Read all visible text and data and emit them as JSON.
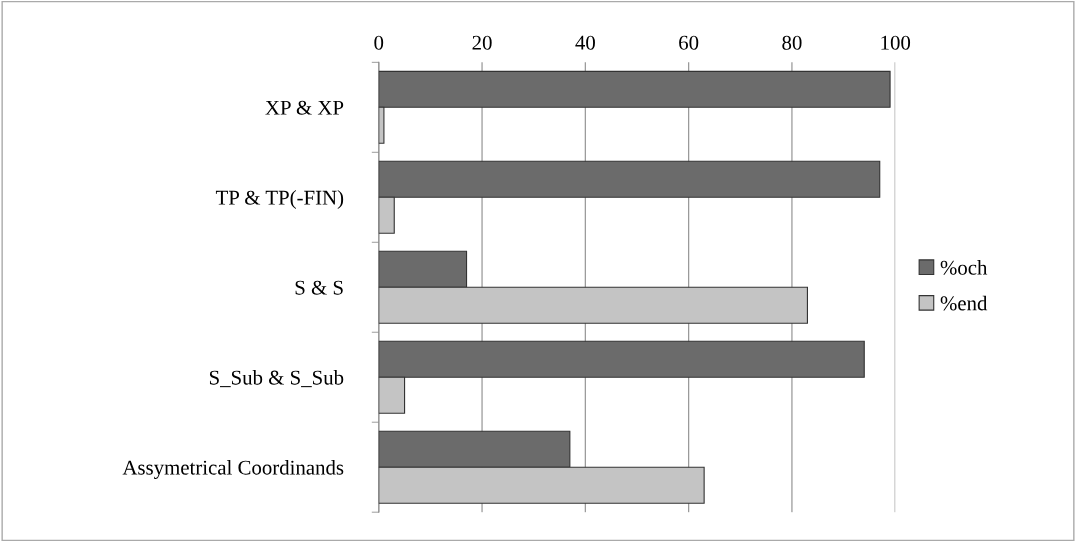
{
  "chart_data": {
    "type": "bar",
    "orientation": "horizontal",
    "categories": [
      "XP & XP",
      "TP & TP(-FIN)",
      "S & S",
      "S_Sub & S_Sub",
      "Assymetrical Coordinands"
    ],
    "series": [
      {
        "name": "%och",
        "color": "#6b6b6b",
        "values": [
          99,
          97,
          17,
          94,
          37
        ]
      },
      {
        "name": "%end",
        "color": "#c4c4c4",
        "values": [
          1,
          3,
          83,
          5,
          63
        ]
      }
    ],
    "xlim": [
      0,
      100
    ],
    "xticks": [
      0,
      20,
      40,
      60,
      80,
      100
    ],
    "grid": "x",
    "legend": "right"
  }
}
